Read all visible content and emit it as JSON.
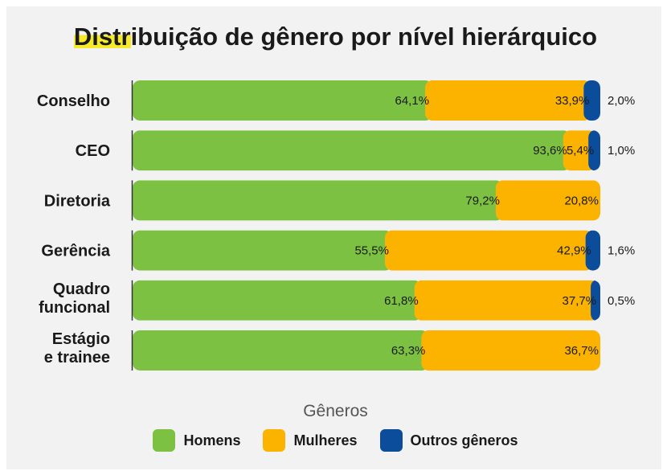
{
  "chart_data": {
    "type": "bar",
    "orientation": "horizontal",
    "stacked": true,
    "title": "Distribuição de gênero por nível hierárquico",
    "title_highlight": "Distr",
    "categories": [
      [
        "Conselho"
      ],
      [
        "CEO"
      ],
      [
        "Diretoria"
      ],
      [
        "Gerência"
      ],
      [
        "Quadro",
        "funcional"
      ],
      [
        "Estágio",
        "e trainee"
      ]
    ],
    "series": [
      {
        "name": "Homens",
        "color": "#7dc142",
        "values": [
          64.1,
          93.6,
          79.2,
          55.5,
          61.8,
          63.3
        ],
        "labels": [
          "64,1%",
          "93,6%",
          "79,2%",
          "55,5%",
          "61,8%",
          "63,3%"
        ]
      },
      {
        "name": "Mulheres",
        "color": "#fbb300",
        "values": [
          33.9,
          5.4,
          20.8,
          42.9,
          37.7,
          36.7
        ],
        "labels": [
          "33,9%",
          "5,4%",
          "20,8%",
          "42,9%",
          "37,7%",
          "36,7%"
        ]
      },
      {
        "name": "Outros gêneros",
        "color": "#0b4d9a",
        "values": [
          2.0,
          1.0,
          0,
          1.6,
          0.5,
          0
        ],
        "labels": [
          "2,0%",
          "1,0%",
          "",
          "1,6%",
          "0,5%",
          ""
        ]
      }
    ],
    "xlim": [
      0,
      100
    ],
    "legend_title": "Gêneros",
    "legend_position": "bottom-center"
  }
}
